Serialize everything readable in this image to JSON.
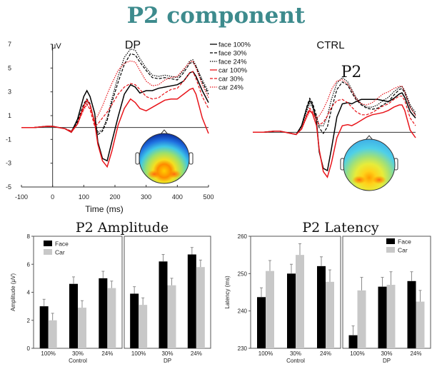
{
  "title": "P2 component",
  "chart_data": [
    {
      "type": "line",
      "name": "erp-dp",
      "title": "DP",
      "ylabel": "μV",
      "xlabel": "Time (ms)",
      "xlim": [
        -100,
        500
      ],
      "ylim": [
        -5,
        7
      ],
      "xticks": [
        -100,
        0,
        100,
        200,
        300,
        400,
        500
      ],
      "yticks": [
        7,
        5,
        3,
        1,
        -1,
        -3,
        -5
      ],
      "series": [
        {
          "name": "face 100%",
          "color": "#000000",
          "dash": "solid",
          "x": [
            -100,
            -60,
            -20,
            0,
            20,
            40,
            60,
            80,
            100,
            110,
            120,
            135,
            145,
            160,
            175,
            190,
            210,
            230,
            250,
            265,
            280,
            300,
            320,
            340,
            360,
            380,
            400,
            420,
            440,
            450,
            460,
            480,
            500
          ],
          "y": [
            0,
            0,
            0.1,
            0.1,
            0,
            -0.1,
            -0.4,
            0.7,
            2.6,
            3.1,
            2.6,
            1.2,
            -1.2,
            -2.6,
            -2.8,
            -1.2,
            0.9,
            2.8,
            3.6,
            3.4,
            2.9,
            3.1,
            3.1,
            3.3,
            3.4,
            3.5,
            3.6,
            3.9,
            4.6,
            4.7,
            4.3,
            3.1,
            2.1
          ]
        },
        {
          "name": "face 30%",
          "color": "#000000",
          "dash": "4,2",
          "x": [
            -100,
            -60,
            -20,
            0,
            20,
            40,
            60,
            80,
            100,
            110,
            120,
            135,
            145,
            160,
            175,
            190,
            210,
            230,
            250,
            265,
            280,
            300,
            320,
            340,
            360,
            380,
            400,
            420,
            440,
            450,
            460,
            480,
            500
          ],
          "y": [
            0,
            0,
            0.1,
            0.1,
            0,
            -0.1,
            -0.3,
            0.5,
            2.0,
            2.4,
            2.0,
            0.4,
            -0.6,
            -0.3,
            0.6,
            2.1,
            3.8,
            5.3,
            6.2,
            6.1,
            5.5,
            4.8,
            4.2,
            4.1,
            4.2,
            4.1,
            4.0,
            4.6,
            5.4,
            5.5,
            5.1,
            3.8,
            2.8
          ]
        },
        {
          "name": "face 24%",
          "color": "#000000",
          "dash": "1.5,1.5",
          "x": [
            -100,
            -60,
            -20,
            0,
            20,
            40,
            60,
            80,
            100,
            110,
            120,
            135,
            145,
            160,
            175,
            190,
            210,
            230,
            250,
            265,
            280,
            300,
            320,
            340,
            360,
            380,
            400,
            420,
            440,
            450,
            460,
            480,
            500
          ],
          "y": [
            0,
            0,
            0.1,
            0.1,
            0,
            -0.1,
            -0.3,
            0.4,
            1.8,
            2.2,
            1.9,
            0.5,
            -0.4,
            -0.2,
            0.8,
            2.4,
            4.3,
            5.9,
            6.6,
            6.5,
            5.8,
            5.0,
            4.4,
            4.3,
            4.4,
            4.3,
            4.2,
            4.8,
            5.6,
            5.7,
            5.2,
            4.0,
            3.0
          ]
        },
        {
          "name": "car 100%",
          "color": "#e8141a",
          "dash": "solid",
          "x": [
            -100,
            -60,
            -20,
            0,
            20,
            40,
            60,
            80,
            100,
            110,
            120,
            135,
            145,
            160,
            175,
            190,
            210,
            230,
            250,
            265,
            280,
            300,
            320,
            340,
            360,
            380,
            400,
            420,
            440,
            450,
            460,
            480,
            500
          ],
          "y": [
            0,
            0,
            0.1,
            0.1,
            0,
            -0.1,
            -0.4,
            0.3,
            1.8,
            2.3,
            1.9,
            0.4,
            -1.4,
            -2.8,
            -3.3,
            -2.0,
            0.2,
            1.6,
            2.4,
            2.1,
            1.6,
            1.4,
            1.7,
            2.0,
            2.3,
            2.4,
            2.4,
            2.8,
            3.2,
            3.3,
            2.8,
            0.8,
            -0.5
          ]
        },
        {
          "name": "car 30%",
          "color": "#e8141a",
          "dash": "4,2",
          "x": [
            -100,
            -60,
            -20,
            0,
            20,
            40,
            60,
            80,
            100,
            110,
            120,
            135,
            145,
            160,
            175,
            190,
            210,
            230,
            250,
            265,
            280,
            300,
            320,
            340,
            360,
            380,
            400,
            420,
            440,
            450,
            460,
            480,
            500
          ],
          "y": [
            0,
            0,
            0.1,
            0.1,
            0,
            -0.1,
            -0.3,
            0.3,
            1.6,
            2.0,
            1.5,
            0.1,
            0.3,
            0.8,
            1.3,
            1.9,
            2.8,
            3.4,
            3.7,
            3.6,
            3.2,
            2.6,
            2.4,
            2.5,
            2.9,
            3.2,
            3.3,
            3.9,
            4.6,
            4.7,
            4.1,
            2.6,
            1.6
          ]
        },
        {
          "name": "car 24%",
          "color": "#e8141a",
          "dash": "1.5,1.5",
          "x": [
            -100,
            -60,
            -20,
            0,
            20,
            40,
            60,
            80,
            100,
            110,
            120,
            135,
            145,
            160,
            175,
            190,
            210,
            230,
            250,
            265,
            280,
            300,
            320,
            340,
            360,
            380,
            400,
            420,
            440,
            450,
            460,
            480,
            500
          ],
          "y": [
            0,
            0,
            0.1,
            0.1,
            0,
            -0.1,
            -0.3,
            0.3,
            1.5,
            1.9,
            1.6,
            0.6,
            1.0,
            1.8,
            2.8,
            3.7,
            4.8,
            5.4,
            5.6,
            5.5,
            4.8,
            3.9,
            3.5,
            3.6,
            4.0,
            4.2,
            4.3,
            4.9,
            5.5,
            5.6,
            5.0,
            3.6,
            2.5
          ]
        }
      ]
    },
    {
      "type": "line",
      "name": "erp-ctrl",
      "title": "CTRL",
      "annotation": "P2",
      "series": [
        {
          "name": "face 100%",
          "color": "#000000",
          "dash": "solid",
          "x": [
            -100,
            -60,
            -20,
            0,
            20,
            40,
            60,
            80,
            100,
            110,
            120,
            135,
            145,
            160,
            175,
            190,
            210,
            230,
            250,
            265,
            280,
            300,
            320,
            340,
            360,
            380,
            400,
            420,
            440,
            450,
            460,
            480,
            500
          ],
          "y": [
            0,
            0,
            0.1,
            0.1,
            0,
            -0.1,
            -0.2,
            0.6,
            2.3,
            2.9,
            2.5,
            1.0,
            -1.8,
            -3.3,
            -3.5,
            -1.5,
            1.4,
            2.6,
            2.7,
            2.6,
            2.8,
            3.0,
            3.0,
            3.0,
            3.0,
            2.9,
            2.8,
            3.1,
            3.5,
            3.6,
            3.2,
            1.9,
            1.3
          ]
        },
        {
          "name": "face 30%",
          "color": "#000000",
          "dash": "4,2",
          "x": [
            -100,
            -60,
            -20,
            0,
            20,
            40,
            60,
            80,
            100,
            110,
            120,
            135,
            145,
            160,
            175,
            190,
            210,
            230,
            250,
            265,
            280,
            300,
            320,
            340,
            360,
            380,
            400,
            420,
            440,
            450,
            460,
            480,
            500
          ],
          "y": [
            0,
            0,
            0.1,
            0.1,
            0,
            -0.1,
            -0.2,
            0.6,
            2.4,
            3.1,
            2.7,
            1.5,
            0.4,
            -0.1,
            0.5,
            2.1,
            3.9,
            4.6,
            4.3,
            3.6,
            3.0,
            2.5,
            2.2,
            2.1,
            2.2,
            2.5,
            2.8,
            3.4,
            3.9,
            4.0,
            3.6,
            2.3,
            1.6
          ]
        },
        {
          "name": "face 24%",
          "color": "#000000",
          "dash": "1.5,1.5",
          "x": [
            -100,
            -60,
            -20,
            0,
            20,
            40,
            60,
            80,
            100,
            110,
            120,
            135,
            145,
            160,
            175,
            190,
            210,
            230,
            250,
            265,
            280,
            300,
            320,
            340,
            360,
            380,
            400,
            420,
            440,
            450,
            460,
            480,
            500
          ],
          "y": [
            0,
            0,
            0.1,
            0.1,
            0,
            -0.1,
            -0.2,
            0.5,
            2.0,
            2.6,
            2.3,
            1.4,
            0.6,
            0.6,
            1.5,
            3.0,
            4.5,
            5.0,
            4.6,
            3.9,
            3.2,
            2.6,
            2.3,
            2.3,
            2.5,
            2.9,
            3.2,
            3.7,
            4.1,
            4.2,
            3.8,
            2.5,
            1.8
          ]
        },
        {
          "name": "car 100%",
          "color": "#e8141a",
          "dash": "solid",
          "x": [
            -100,
            -60,
            -20,
            0,
            20,
            40,
            60,
            80,
            100,
            110,
            120,
            135,
            145,
            160,
            175,
            190,
            210,
            230,
            250,
            265,
            280,
            300,
            320,
            340,
            360,
            380,
            400,
            420,
            440,
            450,
            460,
            480,
            500
          ],
          "y": [
            0,
            0,
            0.1,
            0.1,
            0,
            -0.1,
            -0.2,
            0.3,
            1.6,
            2.0,
            1.7,
            0.6,
            -1.6,
            -3.6,
            -4.1,
            -2.8,
            -0.5,
            0.6,
            0.7,
            0.6,
            0.8,
            1.1,
            1.4,
            1.6,
            1.7,
            1.8,
            2.0,
            2.3,
            2.5,
            2.5,
            2.0,
            0.2,
            -0.5
          ]
        },
        {
          "name": "car 30%",
          "color": "#e8141a",
          "dash": "4,2",
          "x": [
            -100,
            -60,
            -20,
            0,
            20,
            40,
            60,
            80,
            100,
            110,
            120,
            135,
            145,
            160,
            175,
            190,
            210,
            230,
            250,
            265,
            280,
            300,
            320,
            340,
            360,
            380,
            400,
            420,
            440,
            450,
            460,
            480,
            500
          ],
          "y": [
            0,
            0,
            0.1,
            0.1,
            0,
            -0.1,
            -0.2,
            0.3,
            1.7,
            2.2,
            1.9,
            1.1,
            0.7,
            0.9,
            1.5,
            2.3,
            2.9,
            3.0,
            2.7,
            2.3,
            1.9,
            1.6,
            1.6,
            1.8,
            2.1,
            2.4,
            2.6,
            3.0,
            3.3,
            3.3,
            2.9,
            1.3,
            0.6
          ]
        },
        {
          "name": "car 24%",
          "color": "#e8141a",
          "dash": "1.5,1.5",
          "x": [
            -100,
            -60,
            -20,
            0,
            20,
            40,
            60,
            80,
            100,
            110,
            120,
            135,
            145,
            160,
            175,
            190,
            210,
            230,
            250,
            265,
            280,
            300,
            320,
            340,
            360,
            380,
            400,
            420,
            440,
            450,
            460,
            480,
            500
          ],
          "y": [
            0,
            0,
            0.1,
            0.1,
            0,
            -0.1,
            -0.2,
            0.3,
            1.4,
            1.9,
            1.8,
            1.3,
            1.5,
            2.1,
            2.9,
            3.9,
            4.7,
            4.8,
            4.4,
            3.8,
            3.1,
            2.6,
            2.5,
            2.7,
            3.1,
            3.5,
            3.7,
            4.0,
            4.2,
            4.2,
            3.7,
            2.3,
            1.5
          ]
        }
      ]
    },
    {
      "type": "bar",
      "name": "p2-amplitude",
      "title": "P2 Amplitude",
      "ylabel": "Amplitude (μV)",
      "ylim": [
        0,
        8
      ],
      "yticks": [
        0,
        2,
        4,
        6,
        8
      ],
      "groups": [
        "Control",
        "DP"
      ],
      "categories": [
        "100%",
        "30%",
        "24%"
      ],
      "legend": [
        "Face",
        "Car"
      ],
      "series": [
        {
          "name": "Face",
          "color": "#000000",
          "values": [
            [
              3.0,
              4.6,
              5.0
            ],
            [
              3.9,
              6.2,
              6.7
            ]
          ],
          "errors": [
            [
              0.5,
              0.5,
              0.5
            ],
            [
              0.5,
              0.5,
              0.5
            ]
          ]
        },
        {
          "name": "Car",
          "color": "#c8c8c8",
          "values": [
            [
              2.0,
              2.9,
              4.3
            ],
            [
              3.1,
              4.5,
              5.8
            ]
          ],
          "errors": [
            [
              0.5,
              0.5,
              0.5
            ],
            [
              0.5,
              0.5,
              0.5
            ]
          ]
        }
      ]
    },
    {
      "type": "bar",
      "name": "p2-latency",
      "title": "P2 Latency",
      "ylabel": "Latency (ms)",
      "ylim": [
        230,
        260
      ],
      "yticks": [
        230,
        240,
        250,
        260
      ],
      "groups": [
        "Control",
        "DP"
      ],
      "categories": [
        "100%",
        "30%",
        "24%"
      ],
      "legend": [
        "Face",
        "Car"
      ],
      "series": [
        {
          "name": "Face",
          "color": "#000000",
          "values": [
            [
              243.7,
              250.0,
              252.0
            ],
            [
              233.5,
              246.5,
              248.0
            ]
          ],
          "errors": [
            [
              2.5,
              2.5,
              2.5
            ],
            [
              2.5,
              2.5,
              2.5
            ]
          ]
        },
        {
          "name": "Car",
          "color": "#c8c8c8",
          "values": [
            [
              250.7,
              255.0,
              247.8
            ],
            [
              245.5,
              247.0,
              242.5
            ]
          ],
          "errors": [
            [
              2.8,
              3.0,
              3.2
            ],
            [
              3.5,
              3.5,
              3.0
            ]
          ]
        }
      ]
    }
  ]
}
